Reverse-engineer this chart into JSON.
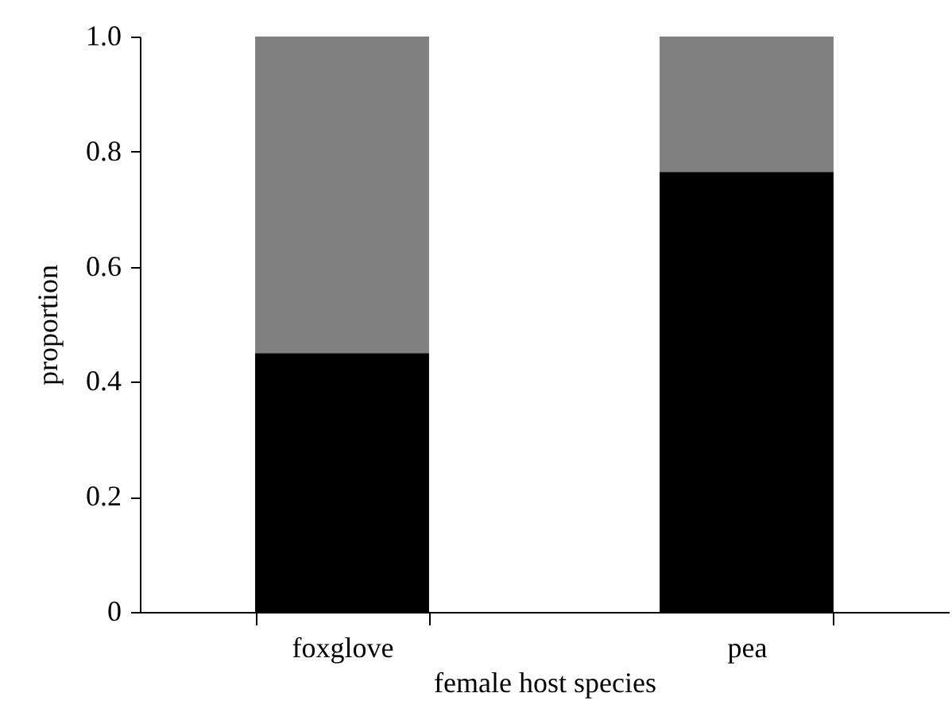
{
  "chart_data": {
    "type": "bar",
    "xlabel": "female host species",
    "ylabel": "proportion",
    "categories": [
      "foxglove",
      "pea"
    ],
    "series": [
      {
        "color": "#000000",
        "values": [
          0.45,
          0.765
        ]
      },
      {
        "color": "#808080",
        "values": [
          0.55,
          0.235
        ]
      }
    ],
    "stacked": true,
    "ylim": [
      0,
      1
    ],
    "yticks": [
      0,
      0.2,
      0.4,
      0.6,
      0.8,
      {
        "value": 1,
        "label": "1.0"
      }
    ],
    "grid": false,
    "legend": false
  }
}
